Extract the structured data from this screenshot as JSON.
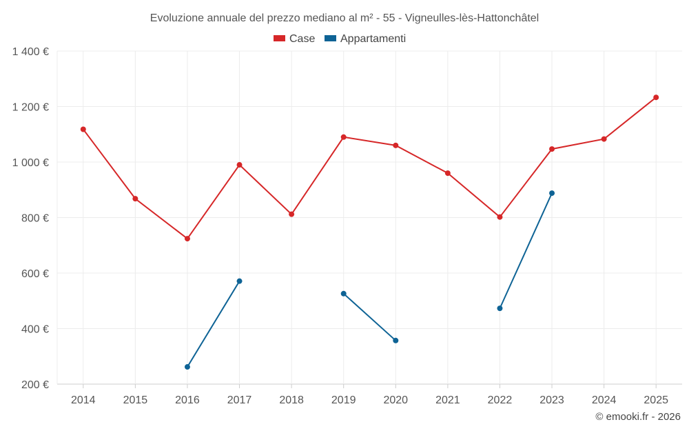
{
  "chart_data": {
    "type": "line",
    "title": "Evoluzione annuale del prezzo mediano al m² - 55 - Vigneulles-lès-Hattonchâtel",
    "xlabel": "",
    "ylabel": "",
    "categories": [
      "2014",
      "2015",
      "2016",
      "2017",
      "2018",
      "2019",
      "2020",
      "2021",
      "2022",
      "2023",
      "2024",
      "2025"
    ],
    "ylim": [
      200,
      1400
    ],
    "yticks": [
      200,
      400,
      600,
      800,
      1000,
      1200,
      1400
    ],
    "ytick_labels": [
      "200 €",
      "400 €",
      "600 €",
      "800 €",
      "1 000 €",
      "1 200 €",
      "1 400 €"
    ],
    "grid": true,
    "legend_position": "top-center",
    "series": [
      {
        "name": "Case",
        "color": "#d62728",
        "values": [
          1118,
          868,
          724,
          990,
          812,
          1090,
          1060,
          960,
          802,
          1047,
          1083,
          1233
        ]
      },
      {
        "name": "Appartamenti",
        "color": "#0e6395",
        "values": [
          null,
          null,
          262,
          571,
          null,
          526,
          357,
          null,
          473,
          888,
          null,
          null
        ]
      }
    ]
  },
  "credit": "© emooki.fr - 2026"
}
